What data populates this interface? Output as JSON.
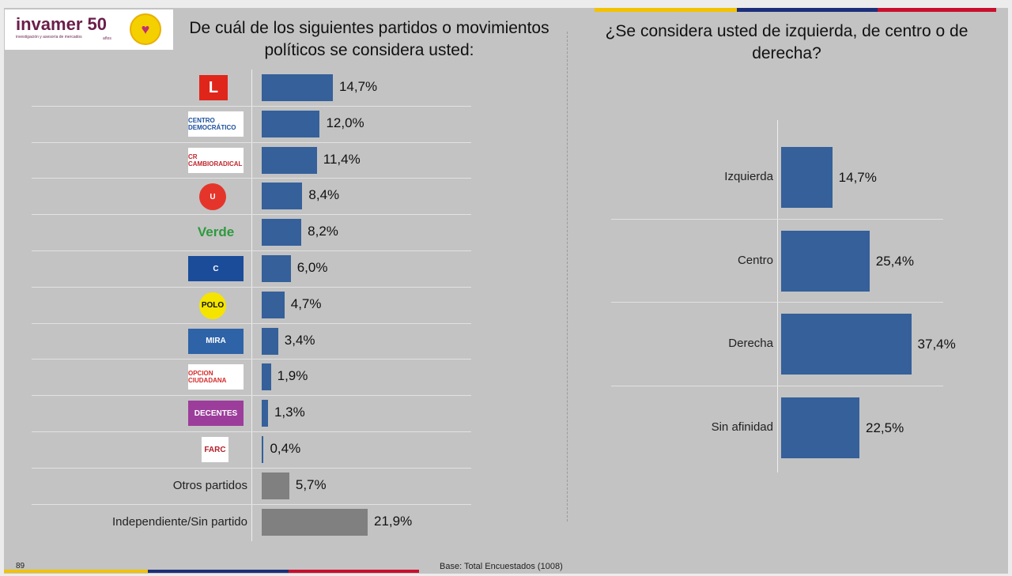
{
  "slide_number": "89",
  "footer": "Base: Total Encuestados (1008)",
  "brand": {
    "logo_text": "invamer 50",
    "logo_subtext": "investigación y asesoría de mercados",
    "years": "años"
  },
  "colors": {
    "bar": "#35609a",
    "bar_other": "#808080",
    "stripe": [
      "#f2c200",
      "#1d2f7a",
      "#c8102e"
    ]
  },
  "chart_data": [
    {
      "type": "bar",
      "orientation": "horizontal",
      "title": "De cuál de los siguientes partidos o movimientos políticos se considera usted:",
      "categories": [
        {
          "logo": "Partido Liberal",
          "logo_text": "L",
          "color": "#e0251b"
        },
        {
          "logo": "Centro Democrático",
          "logo_text": "CENTRO DEMOCRÁTICO",
          "color": "#1b4f9c"
        },
        {
          "logo": "Cambio Radical",
          "logo_text": "CR CAMBIORADICAL",
          "color": "#c0262d"
        },
        {
          "logo": "Partido de la U",
          "logo_text": "U",
          "color": "#e5352b"
        },
        {
          "logo": "Alianza Verde",
          "logo_text": "Verde",
          "color": "#2e9a3d"
        },
        {
          "logo": "Partido Conservador",
          "logo_text": "C",
          "color": "#1a4c9a"
        },
        {
          "logo": "Polo Democrático",
          "logo_text": "POLO",
          "color": "#f5e400"
        },
        {
          "logo": "MIRA",
          "logo_text": "MIRA",
          "color": "#2f63a8"
        },
        {
          "logo": "Opción Ciudadana",
          "logo_text": "OPCION CIUDADANA",
          "color": "#d42a2a"
        },
        {
          "logo": "Decentes",
          "logo_text": "DECENTES",
          "color": "#9c3d9c"
        },
        {
          "logo": "FARC",
          "logo_text": "FARC",
          "color": "#b41e2a"
        },
        {
          "label": "Otros partidos"
        },
        {
          "label": "Independiente/Sin partido"
        }
      ],
      "values": [
        14.7,
        12.0,
        11.4,
        8.4,
        8.2,
        6.0,
        4.7,
        3.4,
        1.9,
        1.3,
        0.4,
        5.7,
        21.9
      ],
      "value_labels": [
        "14,7%",
        "12,0%",
        "11,4%",
        "8,4%",
        "8,2%",
        "6,0%",
        "4,7%",
        "3,4%",
        "1,9%",
        "1,3%",
        "0,4%",
        "5,7%",
        "21,9%"
      ],
      "unit": "%"
    },
    {
      "type": "bar",
      "orientation": "horizontal",
      "title": "¿Se considera usted de izquierda, de centro o de derecha?",
      "categories": [
        "Izquierda",
        "Centro",
        "Derecha",
        "Sin afinidad"
      ],
      "values": [
        14.7,
        25.4,
        37.4,
        22.5
      ],
      "value_labels": [
        "14,7%",
        "25,4%",
        "37,4%",
        "22,5%"
      ],
      "unit": "%"
    }
  ]
}
